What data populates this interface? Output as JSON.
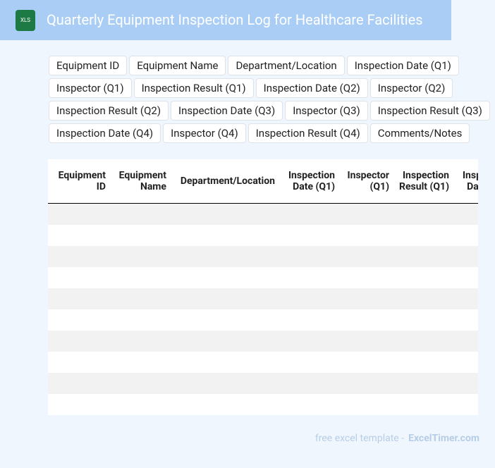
{
  "header": {
    "icon_label": "XLS",
    "title": "Quarterly Equipment Inspection Log for Healthcare Facilities"
  },
  "columns": [
    "Equipment ID",
    "Equipment Name",
    "Department/Location",
    "Inspection Date (Q1)",
    "Inspector (Q1)",
    "Inspection Result (Q1)",
    "Inspection Date (Q2)",
    "Inspector (Q2)",
    "Inspection Result (Q2)",
    "Inspection Date (Q3)",
    "Inspector (Q3)",
    "Inspection Result (Q3)",
    "Inspection Date (Q4)",
    "Inspector (Q4)",
    "Inspection Result (Q4)",
    "Comments/Notes"
  ],
  "footer": {
    "prefix": "free excel template -",
    "brand": "ExcelTimer.com"
  }
}
